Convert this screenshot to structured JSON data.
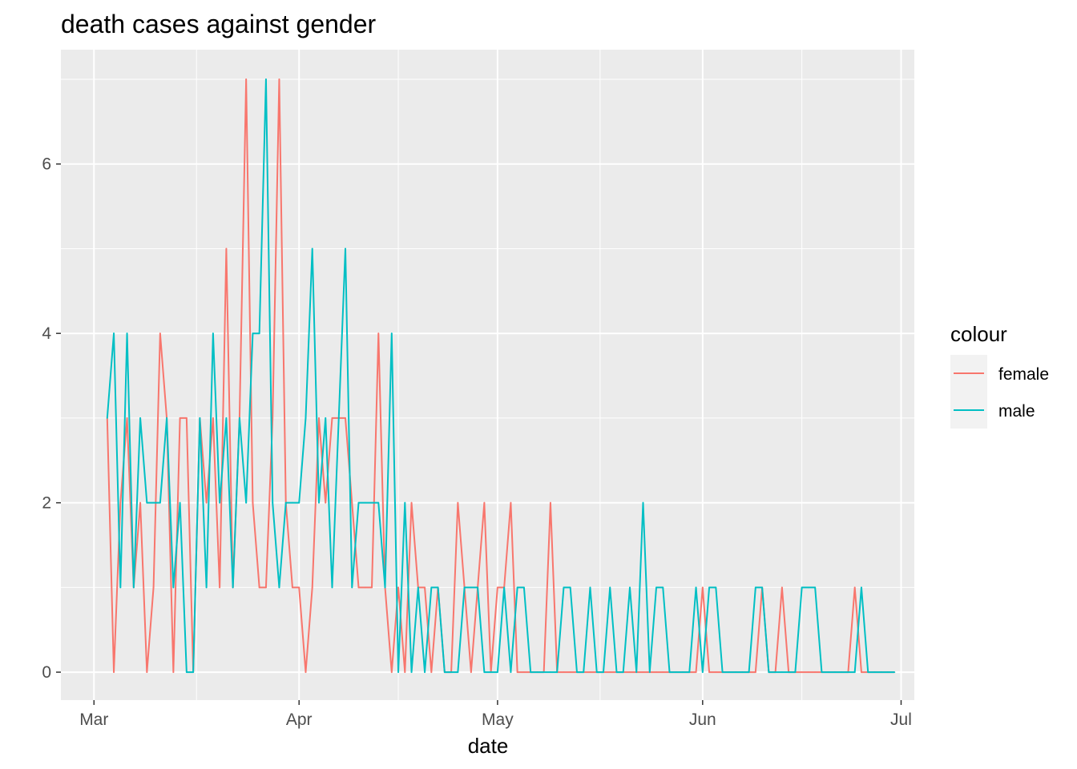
{
  "chart_data": {
    "type": "line",
    "title": "death cases against gender",
    "xlabel": "date",
    "ylabel": "",
    "x_ticks": [
      {
        "date": "2020-03-01",
        "label": "Mar"
      },
      {
        "date": "2020-04-01",
        "label": "Apr"
      },
      {
        "date": "2020-05-01",
        "label": "May"
      },
      {
        "date": "2020-06-01",
        "label": "Jun"
      },
      {
        "date": "2020-07-01",
        "label": "Jul"
      }
    ],
    "y_ticks": [
      0,
      2,
      4,
      6
    ],
    "xlim": [
      "2020-02-25",
      "2020-07-03"
    ],
    "ylim": [
      -0.33,
      7.35
    ],
    "grid": true,
    "legend": {
      "title": "colour",
      "position": "right"
    },
    "colors": {
      "female": "#F8766D",
      "male": "#00BFC4"
    },
    "series": [
      {
        "name": "female",
        "x": [
          "2020-03-03",
          "2020-03-04",
          "2020-03-05",
          "2020-03-06",
          "2020-03-07",
          "2020-03-08",
          "2020-03-09",
          "2020-03-10",
          "2020-03-11",
          "2020-03-12",
          "2020-03-13",
          "2020-03-14",
          "2020-03-15",
          "2020-03-16",
          "2020-03-17",
          "2020-03-18",
          "2020-03-19",
          "2020-03-20",
          "2020-03-21",
          "2020-03-22",
          "2020-03-23",
          "2020-03-24",
          "2020-03-25",
          "2020-03-26",
          "2020-03-27",
          "2020-03-28",
          "2020-03-29",
          "2020-03-30",
          "2020-03-31",
          "2020-04-01",
          "2020-04-02",
          "2020-04-03",
          "2020-04-04",
          "2020-04-05",
          "2020-04-06",
          "2020-04-07",
          "2020-04-08",
          "2020-04-09",
          "2020-04-10",
          "2020-04-11",
          "2020-04-12",
          "2020-04-13",
          "2020-04-14",
          "2020-04-15",
          "2020-04-16",
          "2020-04-17",
          "2020-04-18",
          "2020-04-19",
          "2020-04-20",
          "2020-04-21",
          "2020-04-22",
          "2020-04-23",
          "2020-04-24",
          "2020-04-25",
          "2020-04-26",
          "2020-04-27",
          "2020-04-28",
          "2020-04-29",
          "2020-04-30",
          "2020-05-01",
          "2020-05-02",
          "2020-05-03",
          "2020-05-04",
          "2020-05-05",
          "2020-05-06",
          "2020-05-07",
          "2020-05-08",
          "2020-05-09",
          "2020-05-10",
          "2020-05-11",
          "2020-05-12",
          "2020-05-13",
          "2020-05-14",
          "2020-05-15",
          "2020-05-16",
          "2020-05-17",
          "2020-05-18",
          "2020-05-19",
          "2020-05-20",
          "2020-05-21",
          "2020-05-22",
          "2020-05-23",
          "2020-05-24",
          "2020-05-25",
          "2020-05-26",
          "2020-05-27",
          "2020-05-28",
          "2020-05-29",
          "2020-05-30",
          "2020-05-31",
          "2020-06-01",
          "2020-06-02",
          "2020-06-03",
          "2020-06-04",
          "2020-06-05",
          "2020-06-06",
          "2020-06-07",
          "2020-06-08",
          "2020-06-09",
          "2020-06-10",
          "2020-06-11",
          "2020-06-12",
          "2020-06-13",
          "2020-06-14",
          "2020-06-15",
          "2020-06-16",
          "2020-06-17",
          "2020-06-18",
          "2020-06-19",
          "2020-06-20",
          "2020-06-21",
          "2020-06-22",
          "2020-06-23",
          "2020-06-24",
          "2020-06-25",
          "2020-06-26",
          "2020-06-27",
          "2020-06-28",
          "2020-06-29",
          "2020-06-30"
        ],
        "values": [
          3,
          0,
          2,
          3,
          1,
          2,
          0,
          1,
          4,
          3,
          0,
          3,
          3,
          0,
          3,
          2,
          3,
          1,
          5,
          1,
          3,
          7,
          2,
          1,
          1,
          3,
          7,
          2,
          1,
          1,
          0,
          1,
          3,
          2,
          3,
          3,
          3,
          2,
          1,
          1,
          1,
          4,
          1,
          0,
          1,
          0,
          2,
          1,
          1,
          0,
          1,
          0,
          0,
          2,
          1,
          0,
          1,
          2,
          0,
          1,
          1,
          2,
          0,
          0,
          0,
          0,
          0,
          2,
          0,
          0,
          0,
          0,
          0,
          0,
          0,
          0,
          0,
          0,
          0,
          0,
          0,
          0,
          0,
          0,
          0,
          0,
          0,
          0,
          0,
          0,
          1,
          0,
          0,
          0,
          0,
          0,
          0,
          0,
          0,
          1,
          0,
          0,
          1,
          0,
          0,
          0,
          0,
          0,
          0,
          0,
          0,
          0,
          0,
          1,
          0,
          0,
          0,
          0,
          0,
          0
        ]
      },
      {
        "name": "male",
        "x": [
          "2020-03-03",
          "2020-03-04",
          "2020-03-05",
          "2020-03-06",
          "2020-03-07",
          "2020-03-08",
          "2020-03-09",
          "2020-03-10",
          "2020-03-11",
          "2020-03-12",
          "2020-03-13",
          "2020-03-14",
          "2020-03-15",
          "2020-03-16",
          "2020-03-17",
          "2020-03-18",
          "2020-03-19",
          "2020-03-20",
          "2020-03-21",
          "2020-03-22",
          "2020-03-23",
          "2020-03-24",
          "2020-03-25",
          "2020-03-26",
          "2020-03-27",
          "2020-03-28",
          "2020-03-29",
          "2020-03-30",
          "2020-03-31",
          "2020-04-01",
          "2020-04-02",
          "2020-04-03",
          "2020-04-04",
          "2020-04-05",
          "2020-04-06",
          "2020-04-07",
          "2020-04-08",
          "2020-04-09",
          "2020-04-10",
          "2020-04-11",
          "2020-04-12",
          "2020-04-13",
          "2020-04-14",
          "2020-04-15",
          "2020-04-16",
          "2020-04-17",
          "2020-04-18",
          "2020-04-19",
          "2020-04-20",
          "2020-04-21",
          "2020-04-22",
          "2020-04-23",
          "2020-04-24",
          "2020-04-25",
          "2020-04-26",
          "2020-04-27",
          "2020-04-28",
          "2020-04-29",
          "2020-04-30",
          "2020-05-01",
          "2020-05-02",
          "2020-05-03",
          "2020-05-04",
          "2020-05-05",
          "2020-05-06",
          "2020-05-07",
          "2020-05-08",
          "2020-05-09",
          "2020-05-10",
          "2020-05-11",
          "2020-05-12",
          "2020-05-13",
          "2020-05-14",
          "2020-05-15",
          "2020-05-16",
          "2020-05-17",
          "2020-05-18",
          "2020-05-19",
          "2020-05-20",
          "2020-05-21",
          "2020-05-22",
          "2020-05-23",
          "2020-05-24",
          "2020-05-25",
          "2020-05-26",
          "2020-05-27",
          "2020-05-28",
          "2020-05-29",
          "2020-05-30",
          "2020-05-31",
          "2020-06-01",
          "2020-06-02",
          "2020-06-03",
          "2020-06-04",
          "2020-06-05",
          "2020-06-06",
          "2020-06-07",
          "2020-06-08",
          "2020-06-09",
          "2020-06-10",
          "2020-06-11",
          "2020-06-12",
          "2020-06-13",
          "2020-06-14",
          "2020-06-15",
          "2020-06-16",
          "2020-06-17",
          "2020-06-18",
          "2020-06-19",
          "2020-06-20",
          "2020-06-21",
          "2020-06-22",
          "2020-06-23",
          "2020-06-24",
          "2020-06-25",
          "2020-06-26",
          "2020-06-27",
          "2020-06-28",
          "2020-06-29",
          "2020-06-30"
        ],
        "values": [
          3,
          4,
          1,
          4,
          1,
          3,
          2,
          2,
          2,
          3,
          1,
          2,
          0,
          0,
          3,
          1,
          4,
          2,
          3,
          1,
          3,
          2,
          4,
          4,
          7,
          2,
          1,
          2,
          2,
          2,
          3,
          5,
          2,
          3,
          1,
          3,
          5,
          1,
          2,
          2,
          2,
          2,
          1,
          4,
          0,
          2,
          0,
          1,
          0,
          1,
          1,
          0,
          0,
          0,
          1,
          1,
          1,
          0,
          0,
          0,
          1,
          0,
          1,
          1,
          0,
          0,
          0,
          0,
          0,
          1,
          1,
          0,
          0,
          1,
          0,
          0,
          1,
          0,
          0,
          1,
          0,
          2,
          0,
          1,
          1,
          0,
          0,
          0,
          0,
          1,
          0,
          1,
          1,
          0,
          0,
          0,
          0,
          0,
          1,
          1,
          0,
          0,
          0,
          0,
          0,
          1,
          1,
          1,
          0,
          0,
          0,
          0,
          0,
          0,
          1,
          0,
          0,
          0,
          0,
          0
        ]
      }
    ]
  }
}
